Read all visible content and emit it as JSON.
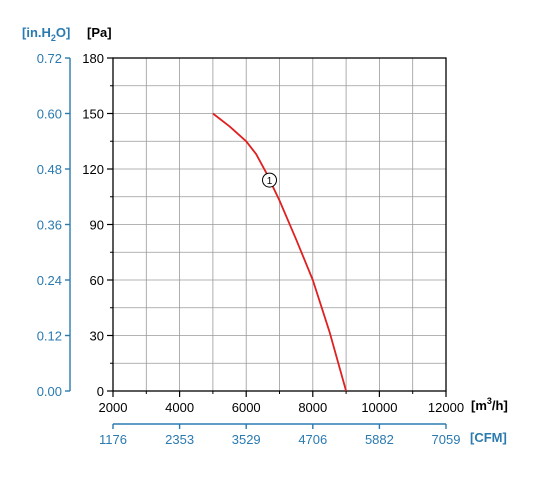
{
  "chart_data": {
    "type": "line",
    "x_unit": "[m³/h]",
    "x_unit_parts": {
      "base": "[m",
      "sup": "3",
      "tail": "/h]"
    },
    "y_unit": "[Pa]",
    "xlim": [
      2000,
      12000
    ],
    "ylim": [
      0,
      180
    ],
    "x_ticks": [
      2000,
      4000,
      6000,
      8000,
      10000,
      12000
    ],
    "x_tick_labels": [
      "2000",
      "4000",
      "6000",
      "8000",
      "10000",
      "12000"
    ],
    "y_ticks": [
      0,
      30,
      60,
      90,
      120,
      150,
      180
    ],
    "y_tick_labels": [
      "0",
      "30",
      "60",
      "90",
      "120",
      "150",
      "180"
    ],
    "secondary_x_axis": {
      "unit": "[CFM]",
      "tick_labels": [
        "1176",
        "2353",
        "3529",
        "4706",
        "5882",
        "7059"
      ],
      "tick_values_m3h": [
        2000,
        4000,
        6000,
        8000,
        10000,
        12000
      ]
    },
    "secondary_y_axis": {
      "unit": "[in.H₂O]",
      "unit_parts": {
        "base": "[in.H",
        "sub": "2",
        "tail": "O]"
      },
      "tick_labels": [
        "0.00",
        "0.12",
        "0.24",
        "0.36",
        "0.48",
        "0.60",
        "0.72"
      ],
      "tick_values_pa": [
        0,
        30,
        60,
        90,
        120,
        150,
        180
      ]
    },
    "grid": true,
    "colors": {
      "curve": "#e02020",
      "secondary_axis": "#2a7ab0",
      "axis": "#000000",
      "grid": "#9a9a9a"
    },
    "series": [
      {
        "marker_label": "①",
        "marker_at": {
          "x": 6700,
          "y": 114
        },
        "x": [
          5000,
          5500,
          6000,
          6300,
          6600,
          7000,
          7500,
          8000,
          8500,
          9000
        ],
        "y": [
          150,
          143,
          135,
          128,
          118,
          103,
          82,
          60,
          32,
          0
        ]
      }
    ]
  }
}
